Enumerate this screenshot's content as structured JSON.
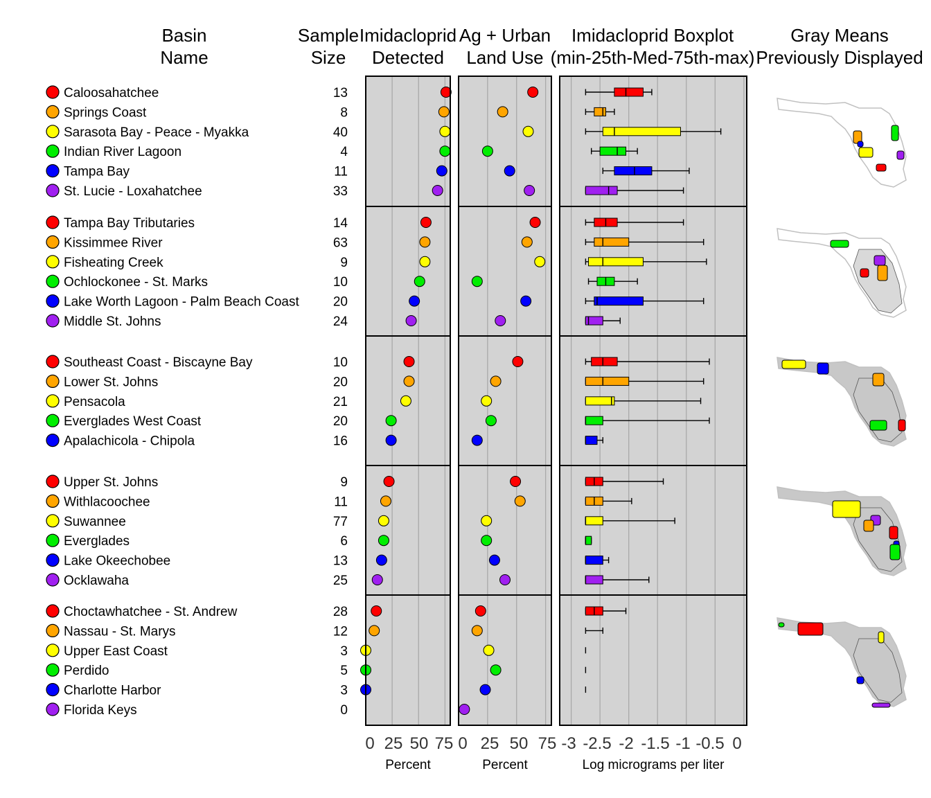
{
  "headers": {
    "basin_name": [
      "Basin",
      "Name"
    ],
    "sample_size": [
      "Sample",
      "Size"
    ],
    "detected": [
      "Imidacloprid",
      "Detected"
    ],
    "landuse": [
      "Ag + Urban",
      "Land Use"
    ],
    "boxplot": [
      "Imidacloprid Boxplot",
      "(min-25th-Med-75th-max)"
    ],
    "maps": [
      "Gray Means",
      "Previously Displayed"
    ]
  },
  "colors": [
    "#ff0000",
    "#ffa500",
    "#ffff00",
    "#00ee00",
    "#0000ff",
    "#a020f0"
  ],
  "panel_background": "#d3d3d3",
  "chart_data": {
    "type": "dot-and-boxplot",
    "panels": [
      {
        "name": "detected",
        "xlabel": "Percent",
        "ticks": [
          "0",
          "25",
          "50",
          "75"
        ],
        "xlim": [
          0,
          80
        ]
      },
      {
        "name": "landuse",
        "xlabel": "Percent",
        "ticks": [
          "0",
          "25",
          "50",
          "75"
        ],
        "xlim": [
          0,
          80
        ]
      },
      {
        "name": "boxplot",
        "xlabel": "Log micrograms per liter",
        "ticks": [
          "-3",
          "-2.5",
          "-2",
          "-1.5",
          "-1",
          "-0.5",
          "0"
        ],
        "xlim": [
          -3.2,
          0.05
        ]
      }
    ],
    "groups": [
      {
        "basins": [
          {
            "name": "Caloosahatchee",
            "n": "13",
            "detected": 76,
            "landuse": 64,
            "box": [
              -2.75,
              -2.25,
              -2.05,
              -1.75,
              -1.6
            ]
          },
          {
            "name": "Springs Coast",
            "n": "8",
            "detected": 74,
            "landuse": 38,
            "box": [
              -2.75,
              -2.6,
              -2.45,
              -2.4,
              -2.25
            ]
          },
          {
            "name": "Sarasota Bay - Peace - Myakka",
            "n": "40",
            "detected": 75,
            "landuse": 60,
            "box": [
              -2.75,
              -2.45,
              -2.25,
              -1.1,
              -0.4
            ]
          },
          {
            "name": "Indian River Lagoon",
            "n": "4",
            "detected": 75,
            "landuse": 25,
            "box": [
              -2.65,
              -2.5,
              -2.2,
              -2.05,
              -1.85
            ]
          },
          {
            "name": "Tampa Bay",
            "n": "11",
            "detected": 72,
            "landuse": 44,
            "box": [
              -2.45,
              -2.25,
              -1.9,
              -1.6,
              -0.95
            ]
          },
          {
            "name": "St. Lucie - Loxahatchee",
            "n": "33",
            "detected": 68,
            "landuse": 61,
            "box": [
              -2.75,
              -2.75,
              -2.35,
              -2.2,
              -1.05
            ]
          }
        ]
      },
      {
        "basins": [
          {
            "name": "Tampa Bay Tributaries",
            "n": "14",
            "detected": 57,
            "landuse": 66,
            "box": [
              -2.75,
              -2.6,
              -2.4,
              -2.2,
              -1.05
            ]
          },
          {
            "name": "Kissimmee River",
            "n": "63",
            "detected": 56,
            "landuse": 59,
            "box": [
              -2.75,
              -2.6,
              -2.45,
              -2.0,
              -0.7
            ]
          },
          {
            "name": "Fisheating Creek",
            "n": "9",
            "detected": 56,
            "landuse": 70,
            "box": [
              -2.75,
              -2.7,
              -2.45,
              -1.75,
              -0.65
            ]
          },
          {
            "name": "Ochlockonee - St. Marks",
            "n": "10",
            "detected": 51,
            "landuse": 16,
            "box": [
              -2.7,
              -2.55,
              -2.4,
              -2.25,
              -1.85
            ]
          },
          {
            "name": "Lake Worth Lagoon - Palm Beach Coast",
            "n": "20",
            "detected": 46,
            "landuse": 58,
            "box": [
              -2.75,
              -2.6,
              -2.55,
              -1.75,
              -0.7
            ]
          },
          {
            "name": "Middle St. Johns",
            "n": "24",
            "detected": 43,
            "landuse": 36,
            "box": [
              -2.75,
              -2.75,
              -2.7,
              -2.45,
              -2.15
            ]
          }
        ]
      },
      {
        "basins": [
          {
            "name": "Southeast Coast - Biscayne Bay",
            "n": "10",
            "detected": 41,
            "landuse": 51,
            "box": [
              -2.75,
              -2.65,
              -2.45,
              -2.2,
              -0.6
            ]
          },
          {
            "name": "Lower St. Johns",
            "n": "20",
            "detected": 41,
            "landuse": 32,
            "box": [
              -2.75,
              -2.75,
              -2.45,
              -2.0,
              -0.7
            ]
          },
          {
            "name": "Pensacola",
            "n": "21",
            "detected": 38,
            "landuse": 24,
            "box": [
              -2.75,
              -2.75,
              -2.3,
              -2.25,
              -0.75
            ]
          },
          {
            "name": "Everglades West Coast",
            "n": "20",
            "detected": 24,
            "landuse": 28,
            "box": [
              -2.75,
              -2.75,
              -2.75,
              -2.45,
              -0.6
            ]
          },
          {
            "name": "Apalachicola - Chipola",
            "n": "16",
            "detected": 24,
            "landuse": 16,
            "box": [
              -2.75,
              -2.75,
              -2.75,
              -2.55,
              -2.45
            ]
          }
        ]
      },
      {
        "basins": [
          {
            "name": "Upper St. Johns",
            "n": "9",
            "detected": 22,
            "landuse": 49,
            "box": [
              -2.75,
              -2.75,
              -2.6,
              -2.45,
              -1.4
            ]
          },
          {
            "name": "Withlacoochee",
            "n": "11",
            "detected": 19,
            "landuse": 53,
            "box": [
              -2.75,
              -2.75,
              -2.6,
              -2.45,
              -1.95
            ]
          },
          {
            "name": "Suwannee",
            "n": "77",
            "detected": 17,
            "landuse": 24,
            "box": [
              -2.75,
              -2.75,
              -2.75,
              -2.45,
              -1.2
            ]
          },
          {
            "name": "Everglades",
            "n": "6",
            "detected": 17,
            "landuse": 24,
            "box": [
              -2.75,
              -2.75,
              -2.75,
              -2.65,
              -2.65
            ]
          },
          {
            "name": "Lake Okeechobee",
            "n": "13",
            "detected": 15,
            "landuse": 31,
            "box": [
              -2.75,
              -2.75,
              -2.75,
              -2.45,
              -2.35
            ]
          },
          {
            "name": "Ocklawaha",
            "n": "25",
            "detected": 11,
            "landuse": 40,
            "box": [
              -2.75,
              -2.75,
              -2.75,
              -2.45,
              -1.65
            ]
          }
        ]
      },
      {
        "basins": [
          {
            "name": "Choctawhatchee - St. Andrew",
            "n": "28",
            "detected": 10,
            "landuse": 19,
            "box": [
              -2.75,
              -2.75,
              -2.6,
              -2.45,
              -2.05
            ]
          },
          {
            "name": "Nassau - St. Marys",
            "n": "12",
            "detected": 8,
            "landuse": 16,
            "box": [
              -2.75,
              -2.75,
              -2.75,
              -2.75,
              -2.45
            ]
          },
          {
            "name": "Upper East Coast",
            "n": "3",
            "detected": 0,
            "landuse": 26,
            "box": [
              -2.75,
              -2.75,
              -2.75,
              -2.75,
              -2.75
            ]
          },
          {
            "name": "Perdido",
            "n": "5",
            "detected": 0,
            "landuse": 32,
            "box": [
              -2.75,
              -2.75,
              -2.75,
              -2.75,
              -2.75
            ]
          },
          {
            "name": "Charlotte Harbor",
            "n": "3",
            "detected": 0,
            "landuse": 23,
            "box": [
              -2.75,
              -2.75,
              -2.75,
              -2.75,
              -2.75
            ]
          },
          {
            "name": "Florida Keys",
            "n": "0",
            "detected": null,
            "landuse": 5,
            "box": null
          }
        ]
      }
    ]
  }
}
